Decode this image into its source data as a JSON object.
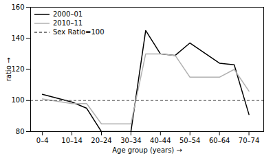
{
  "chart_data": {
    "type": "line",
    "x": [
      0,
      2,
      3,
      4,
      6,
      7,
      8,
      9,
      10,
      12,
      13,
      14
    ],
    "series": [
      {
        "name": "2000–01",
        "color": "#000000",
        "line_style": "solid",
        "values": [
          104,
          99,
          95,
          80,
          80,
          145,
          130,
          129,
          137,
          124,
          123,
          91
        ]
      },
      {
        "name": "2010–11",
        "color": "#b0b0b0",
        "line_style": "solid",
        "values": [
          101,
          98,
          98,
          85,
          85,
          130,
          130,
          129,
          115,
          115,
          120,
          106
        ]
      },
      {
        "name": "Sex Ratio=100",
        "type": "hline",
        "y": 100,
        "color": "#555555",
        "line_style": "dashed"
      }
    ],
    "xlabel": "Age group (years)",
    "ylabel": "ratio",
    "xlim": [
      -0.8,
      15.0
    ],
    "xticks": [
      {
        "value": 0,
        "label": "0–4"
      },
      {
        "value": 2,
        "label": "10–14"
      },
      {
        "value": 4,
        "label": "20–24"
      },
      {
        "value": 6,
        "label": "30–34"
      },
      {
        "value": 8,
        "label": "40–44"
      },
      {
        "value": 10,
        "label": "50–54"
      },
      {
        "value": 12,
        "label": "60–64"
      },
      {
        "value": 14,
        "label": "70–74"
      }
    ],
    "ylim": [
      80,
      160
    ],
    "yticks": [
      80,
      100,
      120,
      140,
      160
    ],
    "grid": false,
    "legend": "upper left"
  }
}
